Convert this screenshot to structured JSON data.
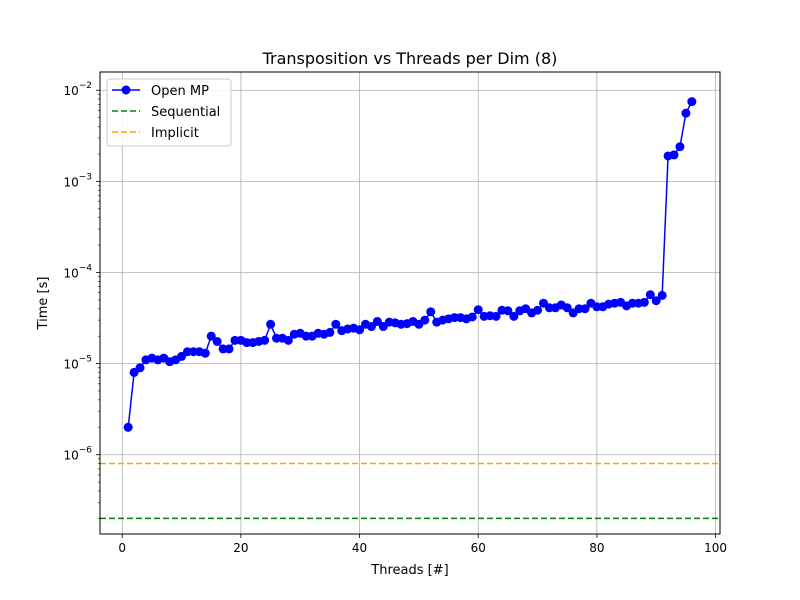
{
  "chart_data": {
    "type": "line",
    "title": "Transposition vs Threads per Dim (8)",
    "xlabel": "Threads [#]",
    "ylabel": "Time [s]",
    "xlim": [
      -3.75,
      100.75
    ],
    "xscale": "linear",
    "yscale": "log",
    "ylim_log10": [
      -6.87,
      -1.8
    ],
    "xticks": [
      0,
      20,
      40,
      60,
      80,
      100
    ],
    "xtick_labels": [
      "0",
      "20",
      "40",
      "60",
      "80",
      "100"
    ],
    "yticks_log10": [
      -6,
      -5,
      -4,
      -3,
      -2
    ],
    "ytick_labels": [
      {
        "base": "10",
        "exp": "−6"
      },
      {
        "base": "10",
        "exp": "−5"
      },
      {
        "base": "10",
        "exp": "−4"
      },
      {
        "base": "10",
        "exp": "−3"
      },
      {
        "base": "10",
        "exp": "−2"
      }
    ],
    "grid": true,
    "legend_position": "upper-left",
    "series": [
      {
        "name": "Open MP",
        "style": "line-with-markers",
        "color": "#0000ff",
        "x": [
          1,
          2,
          3,
          4,
          5,
          6,
          7,
          8,
          9,
          10,
          11,
          12,
          13,
          14,
          15,
          16,
          17,
          18,
          19,
          20,
          21,
          22,
          23,
          24,
          25,
          26,
          27,
          28,
          29,
          30,
          31,
          32,
          33,
          34,
          35,
          36,
          37,
          38,
          39,
          40,
          41,
          42,
          43,
          44,
          45,
          46,
          47,
          48,
          49,
          50,
          51,
          52,
          53,
          54,
          55,
          56,
          57,
          58,
          59,
          60,
          61,
          62,
          63,
          64,
          65,
          66,
          67,
          68,
          69,
          70,
          71,
          72,
          73,
          74,
          75,
          76,
          77,
          78,
          79,
          80,
          81,
          82,
          83,
          84,
          85,
          86,
          87,
          88,
          89,
          90,
          91,
          92,
          93,
          94,
          95,
          96
        ],
        "y": [
          2e-06,
          8e-06,
          9e-06,
          1.1e-05,
          1.15e-05,
          1.1e-05,
          1.15e-05,
          1.05e-05,
          1.1e-05,
          1.2e-05,
          1.35e-05,
          1.35e-05,
          1.35e-05,
          1.3e-05,
          2e-05,
          1.75e-05,
          1.45e-05,
          1.45e-05,
          1.8e-05,
          1.8e-05,
          1.7e-05,
          1.7e-05,
          1.75e-05,
          1.8e-05,
          2.7e-05,
          1.9e-05,
          1.9e-05,
          1.8e-05,
          2.1e-05,
          2.15e-05,
          2e-05,
          2e-05,
          2.15e-05,
          2.1e-05,
          2.2e-05,
          2.7e-05,
          2.3e-05,
          2.4e-05,
          2.45e-05,
          2.35e-05,
          2.7e-05,
          2.55e-05,
          2.9e-05,
          2.55e-05,
          2.85e-05,
          2.8e-05,
          2.7e-05,
          2.75e-05,
          2.9e-05,
          2.7e-05,
          3e-05,
          3.7e-05,
          2.85e-05,
          3e-05,
          3.1e-05,
          3.2e-05,
          3.2e-05,
          3.1e-05,
          3.25e-05,
          3.9e-05,
          3.3e-05,
          3.35e-05,
          3.3e-05,
          3.85e-05,
          3.8e-05,
          3.3e-05,
          3.8e-05,
          4e-05,
          3.6e-05,
          3.85e-05,
          4.6e-05,
          4.1e-05,
          4.1e-05,
          4.4e-05,
          4.1e-05,
          3.6e-05,
          4e-05,
          4e-05,
          4.6e-05,
          4.2e-05,
          4.2e-05,
          4.5e-05,
          4.6e-05,
          4.7e-05,
          4.3e-05,
          4.6e-05,
          4.6e-05,
          4.7e-05,
          5.7e-05,
          4.9e-05,
          5.6e-05,
          0.0019,
          0.00195,
          0.0024,
          0.0056,
          0.0075
        ]
      },
      {
        "name": "Sequential",
        "style": "dashed-hline",
        "color": "#008000",
        "y": 2e-07
      },
      {
        "name": "Implicit",
        "style": "dashed-hline",
        "color": "#ffa500",
        "y": 8e-07
      }
    ]
  }
}
